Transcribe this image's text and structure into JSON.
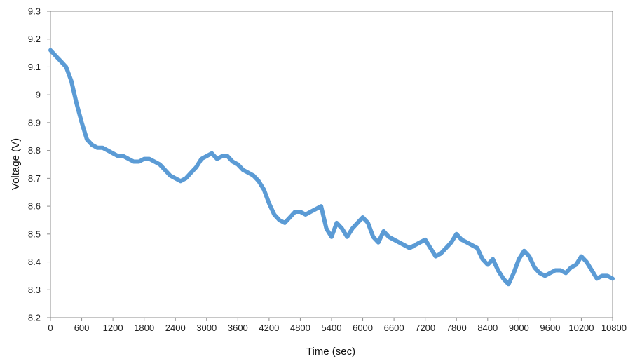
{
  "chart_data": {
    "type": "line",
    "title": "",
    "xlabel": "Time (sec)",
    "ylabel": "Voltage (V)",
    "xlim": [
      0,
      10800
    ],
    "ylim": [
      8.2,
      9.3
    ],
    "xticks": [
      0,
      600,
      1200,
      1800,
      2400,
      3000,
      3600,
      4200,
      4800,
      5400,
      6000,
      6600,
      7200,
      7800,
      8400,
      9000,
      9600,
      10200,
      10800
    ],
    "yticks": [
      "8.2",
      "8.3",
      "8.4",
      "8.5",
      "8.6",
      "8.7",
      "8.8",
      "8.9",
      "9",
      "9.1",
      "9.2",
      "9.3"
    ],
    "grid": false,
    "legend": "none",
    "series": [
      {
        "color": "#5b9bd5",
        "points": [
          [
            0,
            9.16
          ],
          [
            100,
            9.14
          ],
          [
            200,
            9.12
          ],
          [
            300,
            9.1
          ],
          [
            400,
            9.05
          ],
          [
            500,
            8.97
          ],
          [
            600,
            8.9
          ],
          [
            700,
            8.84
          ],
          [
            800,
            8.82
          ],
          [
            900,
            8.81
          ],
          [
            1000,
            8.81
          ],
          [
            1100,
            8.8
          ],
          [
            1200,
            8.79
          ],
          [
            1300,
            8.78
          ],
          [
            1400,
            8.78
          ],
          [
            1500,
            8.77
          ],
          [
            1600,
            8.76
          ],
          [
            1700,
            8.76
          ],
          [
            1800,
            8.77
          ],
          [
            1900,
            8.77
          ],
          [
            2000,
            8.76
          ],
          [
            2100,
            8.75
          ],
          [
            2200,
            8.73
          ],
          [
            2300,
            8.71
          ],
          [
            2400,
            8.7
          ],
          [
            2500,
            8.69
          ],
          [
            2600,
            8.7
          ],
          [
            2700,
            8.72
          ],
          [
            2800,
            8.74
          ],
          [
            2900,
            8.77
          ],
          [
            3000,
            8.78
          ],
          [
            3100,
            8.79
          ],
          [
            3200,
            8.77
          ],
          [
            3300,
            8.78
          ],
          [
            3400,
            8.78
          ],
          [
            3500,
            8.76
          ],
          [
            3600,
            8.75
          ],
          [
            3700,
            8.73
          ],
          [
            3800,
            8.72
          ],
          [
            3900,
            8.71
          ],
          [
            4000,
            8.69
          ],
          [
            4100,
            8.66
          ],
          [
            4200,
            8.61
          ],
          [
            4300,
            8.57
          ],
          [
            4400,
            8.55
          ],
          [
            4500,
            8.54
          ],
          [
            4600,
            8.56
          ],
          [
            4700,
            8.58
          ],
          [
            4800,
            8.58
          ],
          [
            4900,
            8.57
          ],
          [
            5000,
            8.58
          ],
          [
            5100,
            8.59
          ],
          [
            5200,
            8.6
          ],
          [
            5300,
            8.52
          ],
          [
            5400,
            8.49
          ],
          [
            5500,
            8.54
          ],
          [
            5600,
            8.52
          ],
          [
            5700,
            8.49
          ],
          [
            5800,
            8.52
          ],
          [
            5900,
            8.54
          ],
          [
            6000,
            8.56
          ],
          [
            6100,
            8.54
          ],
          [
            6200,
            8.49
          ],
          [
            6300,
            8.47
          ],
          [
            6400,
            8.51
          ],
          [
            6500,
            8.49
          ],
          [
            6600,
            8.48
          ],
          [
            6700,
            8.47
          ],
          [
            6800,
            8.46
          ],
          [
            6900,
            8.45
          ],
          [
            7000,
            8.46
          ],
          [
            7100,
            8.47
          ],
          [
            7200,
            8.48
          ],
          [
            7300,
            8.45
          ],
          [
            7400,
            8.42
          ],
          [
            7500,
            8.43
          ],
          [
            7600,
            8.45
          ],
          [
            7700,
            8.47
          ],
          [
            7800,
            8.5
          ],
          [
            7900,
            8.48
          ],
          [
            8000,
            8.47
          ],
          [
            8100,
            8.46
          ],
          [
            8200,
            8.45
          ],
          [
            8300,
            8.41
          ],
          [
            8400,
            8.39
          ],
          [
            8500,
            8.41
          ],
          [
            8600,
            8.37
          ],
          [
            8700,
            8.34
          ],
          [
            8800,
            8.32
          ],
          [
            8900,
            8.36
          ],
          [
            9000,
            8.41
          ],
          [
            9100,
            8.44
          ],
          [
            9200,
            8.42
          ],
          [
            9300,
            8.38
          ],
          [
            9400,
            8.36
          ],
          [
            9500,
            8.35
          ],
          [
            9600,
            8.36
          ],
          [
            9700,
            8.37
          ],
          [
            9800,
            8.37
          ],
          [
            9900,
            8.36
          ],
          [
            10000,
            8.38
          ],
          [
            10100,
            8.39
          ],
          [
            10200,
            8.42
          ],
          [
            10300,
            8.4
          ],
          [
            10400,
            8.37
          ],
          [
            10500,
            8.34
          ],
          [
            10600,
            8.35
          ],
          [
            10700,
            8.35
          ],
          [
            10800,
            8.34
          ]
        ]
      }
    ]
  }
}
